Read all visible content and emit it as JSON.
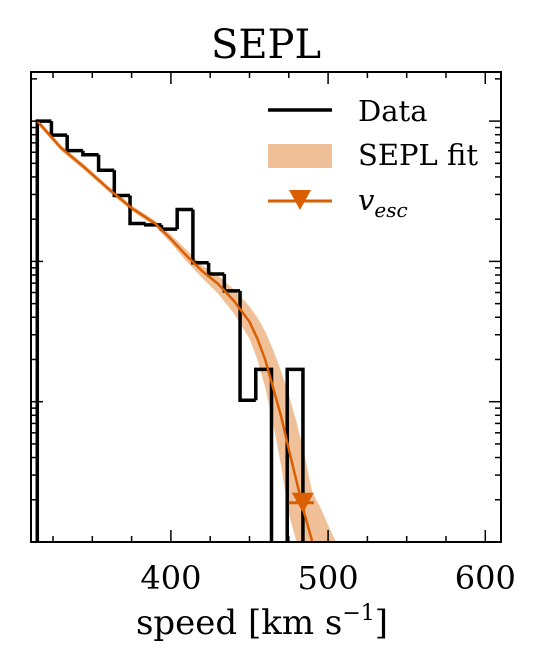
{
  "chart_data": {
    "type": "line",
    "title": "SEPL",
    "xlabel": "speed [km s",
    "xlabel_sup": "−1",
    "xlabel_close": "]",
    "ylabel": "",
    "xlim": [
      311,
      610
    ],
    "ylim_log10": [
      0,
      3.35
    ],
    "y_scale": "log",
    "x_ticks": [
      400,
      500,
      600
    ],
    "legend_position": "top-right",
    "legend": [
      {
        "label": "Data",
        "kind": "line"
      },
      {
        "label": "SEPL fit",
        "kind": "band"
      },
      {
        "label": "v",
        "sub": "esc",
        "kind": "marker"
      }
    ],
    "colors": {
      "data": "#000000",
      "fit": "#d95f02",
      "band": "#f0c098"
    },
    "series": [
      {
        "name": "Data",
        "kind": "step",
        "edges": [
          315,
          324,
          334,
          344,
          354,
          364,
          374,
          384,
          394,
          404,
          414,
          424,
          434,
          444,
          454,
          464,
          474,
          484
        ],
        "log10_counts": [
          3.0,
          2.9,
          2.79,
          2.76,
          2.65,
          2.47,
          2.27,
          2.26,
          2.23,
          2.37,
          1.99,
          1.91,
          1.79,
          1.01,
          1.23,
          null,
          1.23,
          null
        ]
      },
      {
        "name": "SEPL fit",
        "kind": "line_band",
        "x": [
          315,
          330,
          345,
          360,
          375,
          390,
          400,
          410,
          420,
          430,
          440,
          450,
          455,
          460,
          465,
          470,
          475,
          480,
          485,
          490
        ],
        "log10_center": [
          3.0,
          2.81,
          2.67,
          2.52,
          2.38,
          2.27,
          2.16,
          2.04,
          1.93,
          1.84,
          1.72,
          1.57,
          1.45,
          1.3,
          1.1,
          0.9,
          0.66,
          0.43,
          0.2,
          0.0
        ],
        "log10_lower": [
          2.98,
          2.79,
          2.65,
          2.5,
          2.36,
          2.25,
          2.13,
          2.0,
          1.88,
          1.77,
          1.63,
          1.45,
          1.3,
          1.1,
          0.85,
          0.55,
          0.2,
          0.0,
          0.0,
          0.0
        ],
        "log10_upper": [
          3.02,
          2.83,
          2.69,
          2.54,
          2.4,
          2.29,
          2.19,
          2.08,
          1.97,
          1.9,
          1.8,
          1.68,
          1.6,
          1.5,
          1.37,
          1.22,
          1.05,
          0.85,
          0.62,
          0.35
        ],
        "band_ext_x": [
          495,
          500,
          505
        ],
        "band_ext_upper": [
          0.25,
          0.12,
          0.0
        ]
      },
      {
        "name": "v_esc",
        "kind": "marker_errorbar",
        "x": 484,
        "x_err": [
          475,
          491
        ],
        "log10_y": 0.28
      }
    ]
  }
}
